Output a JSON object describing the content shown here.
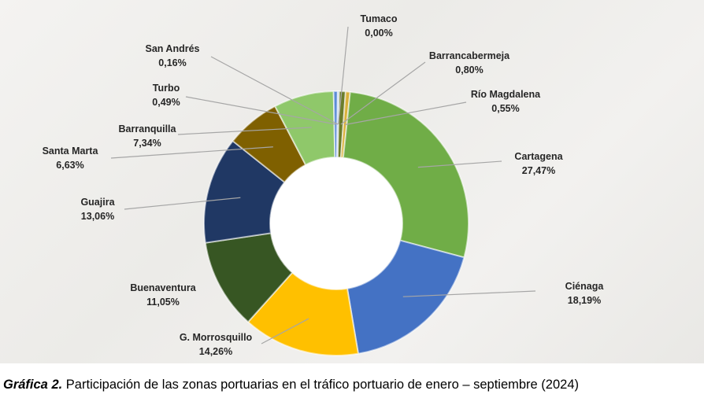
{
  "chart_data": {
    "type": "pie",
    "variant": "donut",
    "title": "",
    "slices": [
      {
        "name": "Tumaco",
        "label": "0,00%",
        "value": 0.0,
        "color": "#c9d08a"
      },
      {
        "name": "Barrancabermeja",
        "label": "0,80%",
        "value": 0.8,
        "color": "#6b7d2a"
      },
      {
        "name": "Río Magdalena",
        "label": "0,55%",
        "value": 0.55,
        "color": "#d9b13a"
      },
      {
        "name": "Cartagena",
        "label": "27,47%",
        "value": 27.47,
        "color": "#70ad47"
      },
      {
        "name": "Ciénaga",
        "label": "18,19%",
        "value": 18.19,
        "color": "#4472c4"
      },
      {
        "name": "G. Morrosquillo",
        "label": "14,26%",
        "value": 14.26,
        "color": "#ffc000"
      },
      {
        "name": "Buenaventura",
        "label": "11,05%",
        "value": 11.05,
        "color": "#375623"
      },
      {
        "name": "Guajira",
        "label": "13,06%",
        "value": 13.06,
        "color": "#203864"
      },
      {
        "name": "Santa Marta",
        "label": "6,63%",
        "value": 6.63,
        "color": "#7f6000"
      },
      {
        "name": "Barranquilla",
        "label": "7,34%",
        "value": 7.34,
        "color": "#8fc86a"
      },
      {
        "name": "Turbo",
        "label": "0,49%",
        "value": 0.49,
        "color": "#5b8bd6"
      },
      {
        "name": "San Andrés",
        "label": "0,16%",
        "value": 0.16,
        "color": "#a9c5e8"
      }
    ]
  },
  "caption": {
    "lead": "Gráfica 2.",
    "text": " Participación de las zonas portuarias en el tráfico portuario de enero – septiembre (2024)"
  }
}
